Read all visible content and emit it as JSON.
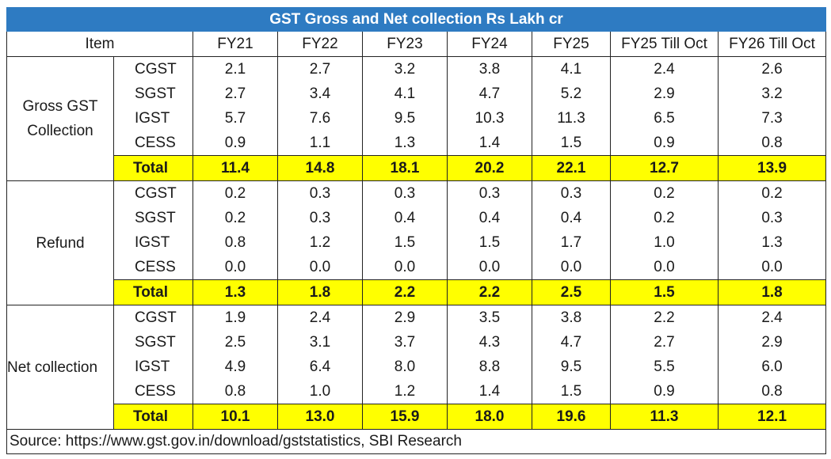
{
  "title": "GST Gross and Net collection Rs Lakh cr",
  "columns": [
    "Item",
    "FY21",
    "FY22",
    "FY23",
    "FY24",
    "FY25",
    "FY25 Till Oct",
    "FY26 Till Oct"
  ],
  "groups": [
    {
      "label_lines": [
        "Gross GST",
        "Collection"
      ],
      "rows": [
        {
          "item": "CGST",
          "values": [
            "2.1",
            "2.7",
            "3.2",
            "3.8",
            "4.1",
            "2.4",
            "2.6"
          ]
        },
        {
          "item": "SGST",
          "values": [
            "2.7",
            "3.4",
            "4.1",
            "4.7",
            "5.2",
            "2.9",
            "3.2"
          ]
        },
        {
          "item": "IGST",
          "values": [
            "5.7",
            "7.6",
            "9.5",
            "10.3",
            "11.3",
            "6.5",
            "7.3"
          ]
        },
        {
          "item": "CESS",
          "values": [
            "0.9",
            "1.1",
            "1.3",
            "1.4",
            "1.5",
            "0.9",
            "0.8"
          ]
        },
        {
          "item": "Total",
          "values": [
            "11.4",
            "14.8",
            "18.1",
            "20.2",
            "22.1",
            "12.7",
            "13.9"
          ]
        }
      ]
    },
    {
      "label_lines": [
        "Refund"
      ],
      "rows": [
        {
          "item": "CGST",
          "values": [
            "0.2",
            "0.3",
            "0.3",
            "0.3",
            "0.3",
            "0.2",
            "0.2"
          ]
        },
        {
          "item": "SGST",
          "values": [
            "0.2",
            "0.3",
            "0.4",
            "0.4",
            "0.4",
            "0.2",
            "0.3"
          ]
        },
        {
          "item": "IGST",
          "values": [
            "0.8",
            "1.2",
            "1.5",
            "1.5",
            "1.7",
            "1.0",
            "1.3"
          ]
        },
        {
          "item": "CESS",
          "values": [
            "0.0",
            "0.0",
            "0.0",
            "0.0",
            "0.0",
            "0.0",
            "0.0"
          ]
        },
        {
          "item": "Total",
          "values": [
            "1.3",
            "1.8",
            "2.2",
            "2.2",
            "2.5",
            "1.5",
            "1.8"
          ]
        }
      ]
    },
    {
      "label_lines": [
        "Net collection"
      ],
      "rows": [
        {
          "item": "CGST",
          "values": [
            "1.9",
            "2.4",
            "2.9",
            "3.5",
            "3.8",
            "2.2",
            "2.4"
          ]
        },
        {
          "item": "SGST",
          "values": [
            "2.5",
            "3.1",
            "3.7",
            "4.3",
            "4.7",
            "2.7",
            "2.9"
          ]
        },
        {
          "item": "IGST",
          "values": [
            "4.9",
            "6.4",
            "8.0",
            "8.8",
            "9.5",
            "5.5",
            "6.0"
          ]
        },
        {
          "item": "CESS",
          "values": [
            "0.8",
            "1.0",
            "1.2",
            "1.4",
            "1.5",
            "0.9",
            "0.8"
          ]
        },
        {
          "item": "Total",
          "values": [
            "10.1",
            "13.0",
            "15.9",
            "18.0",
            "19.6",
            "11.3",
            "12.1"
          ]
        }
      ]
    }
  ],
  "source": "Source: https://www.gst.gov.in/download/gststatistics, SBI Research",
  "colors": {
    "title_bg": "#2e7bc2",
    "total_highlight": "#ffff00",
    "border": "#222222"
  }
}
